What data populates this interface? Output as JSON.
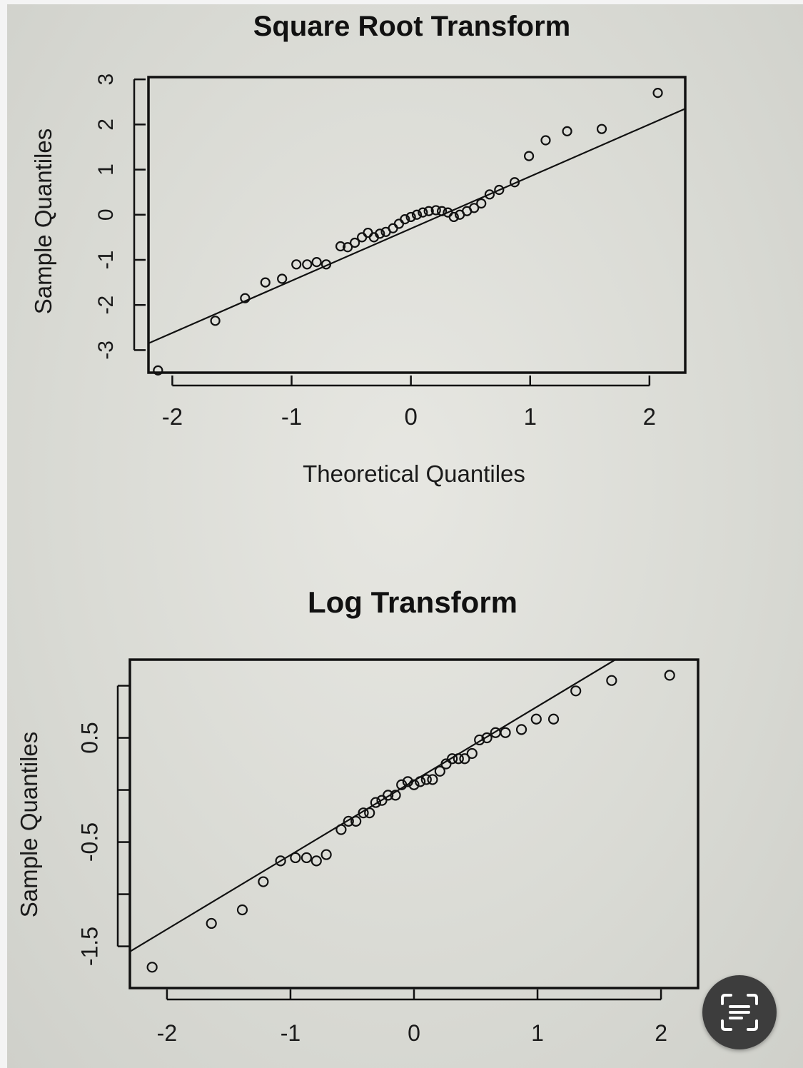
{
  "chart_data": [
    {
      "type": "scatter",
      "title": "Square Root Transform",
      "xlabel": "Theoretical Quantiles",
      "ylabel": "Sample Quantiles",
      "xlim": [
        -2.2,
        2.3
      ],
      "ylim": [
        -3.5,
        3.05
      ],
      "xticks": [
        -2,
        -1,
        0,
        1,
        2
      ],
      "xtick_labels": [
        "-2",
        "-1",
        "0",
        "1",
        "2"
      ],
      "yticks": [
        -3,
        -2,
        -1,
        0,
        1,
        2,
        3
      ],
      "ytick_labels": [
        "-3",
        "-2",
        "-1",
        "0",
        "1",
        "2",
        "3"
      ],
      "grid": false,
      "qq_line": {
        "x": [
          -2.2,
          2.3
        ],
        "y": [
          -2.85,
          2.35
        ]
      },
      "x": [
        -2.12,
        -1.64,
        -1.39,
        -1.22,
        -1.08,
        -0.96,
        -0.87,
        -0.79,
        -0.71,
        -0.59,
        -0.53,
        -0.47,
        -0.41,
        -0.36,
        -0.31,
        -0.26,
        -0.21,
        -0.15,
        -0.1,
        -0.05,
        0.0,
        0.05,
        0.1,
        0.15,
        0.21,
        0.26,
        0.31,
        0.36,
        0.41,
        0.47,
        0.53,
        0.59,
        0.66,
        0.74,
        0.87,
        0.99,
        1.13,
        1.31,
        1.6,
        2.07
      ],
      "y": [
        -3.45,
        -2.35,
        -1.85,
        -1.5,
        -1.42,
        -1.1,
        -1.1,
        -1.05,
        -1.1,
        -0.7,
        -0.72,
        -0.62,
        -0.5,
        -0.4,
        -0.5,
        -0.42,
        -0.38,
        -0.3,
        -0.2,
        -0.1,
        -0.05,
        0.0,
        0.05,
        0.08,
        0.1,
        0.08,
        0.05,
        -0.05,
        0.0,
        0.08,
        0.15,
        0.25,
        0.45,
        0.55,
        0.72,
        1.3,
        1.65,
        1.85,
        1.9,
        2.7
      ]
    },
    {
      "type": "scatter",
      "title": "Log Transform",
      "xlabel": "",
      "ylabel": "Sample Quantiles",
      "xlim": [
        -2.3,
        2.3
      ],
      "ylim": [
        -1.9,
        1.25
      ],
      "xticks": [
        -2,
        -1,
        0,
        1,
        2
      ],
      "xtick_labels": [
        "-2",
        "-1",
        "0",
        "1",
        "2"
      ],
      "yticks": [
        -1.5,
        -0.5,
        0.5
      ],
      "ytick_labels": [
        "-1.5",
        "-0.5",
        "0.5"
      ],
      "yticks_minor": [
        -1,
        0,
        1
      ],
      "grid": false,
      "qq_line": {
        "x": [
          -2.3,
          1.63
        ],
        "y": [
          -1.55,
          1.25
        ]
      },
      "x": [
        -2.12,
        -1.64,
        -1.39,
        -1.22,
        -1.08,
        -0.96,
        -0.87,
        -0.79,
        -0.71,
        -0.59,
        -0.53,
        -0.47,
        -0.41,
        -0.36,
        -0.31,
        -0.26,
        -0.21,
        -0.15,
        -0.1,
        -0.05,
        0.0,
        0.05,
        0.1,
        0.15,
        0.21,
        0.26,
        0.31,
        0.36,
        0.41,
        0.47,
        0.53,
        0.59,
        0.66,
        0.74,
        0.87,
        0.99,
        1.13,
        1.31,
        1.6,
        2.07
      ],
      "y": [
        -1.7,
        -1.28,
        -1.15,
        -0.88,
        -0.68,
        -0.65,
        -0.65,
        -0.68,
        -0.62,
        -0.38,
        -0.3,
        -0.3,
        -0.22,
        -0.22,
        -0.12,
        -0.1,
        -0.05,
        -0.05,
        0.05,
        0.08,
        0.05,
        0.08,
        0.1,
        0.1,
        0.18,
        0.25,
        0.3,
        0.3,
        0.3,
        0.35,
        0.48,
        0.5,
        0.55,
        0.55,
        0.58,
        0.68,
        0.68,
        0.95,
        1.05,
        1.1
      ]
    }
  ],
  "overlay": {
    "lens_button_icon": "scan-text-icon"
  }
}
